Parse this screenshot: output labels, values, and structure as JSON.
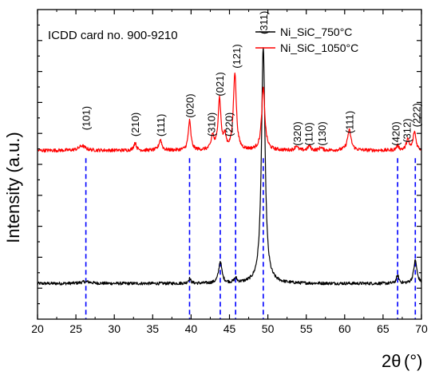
{
  "chart_data": {
    "type": "line",
    "xlabel_main": "2θ",
    "xlabel_unit": "(°)",
    "ylabel": "Intensity (a.u.)",
    "annotation": "ICDD card no. 900-9210",
    "xlim": [
      20,
      70
    ],
    "xticks": [
      20,
      25,
      30,
      35,
      40,
      45,
      50,
      55,
      60,
      65,
      70
    ],
    "ylim": [
      0,
      100
    ],
    "legend_position": "top-right",
    "series": [
      {
        "name": "Ni_SiC_750°C",
        "color": "#000000",
        "baseline": 11.5,
        "noise": 0.5,
        "peaks": [
          {
            "x": 26.3,
            "h": 0.6,
            "w": 0.8
          },
          {
            "x": 39.8,
            "h": 1.5,
            "w": 0.2
          },
          {
            "x": 43.8,
            "h": 7.0,
            "w": 0.25
          },
          {
            "x": 45.8,
            "h": 1.5,
            "w": 0.2
          },
          {
            "x": 49.4,
            "h": 76.5,
            "w": 0.28
          },
          {
            "x": 66.9,
            "h": 2.5,
            "w": 0.2
          },
          {
            "x": 69.2,
            "h": 7.5,
            "w": 0.25
          }
        ]
      },
      {
        "name": "Ni_SiC_1050°C",
        "color": "#ff0000",
        "baseline": 54.5,
        "noise": 0.55,
        "peaks": [
          {
            "x": 25.8,
            "h": 1.5,
            "w": 0.5
          },
          {
            "x": 32.7,
            "h": 2.5,
            "w": 0.2
          },
          {
            "x": 36.0,
            "h": 3.5,
            "w": 0.22
          },
          {
            "x": 39.8,
            "h": 9.5,
            "w": 0.2
          },
          {
            "x": 42.8,
            "h": 4.5,
            "w": 0.2
          },
          {
            "x": 43.7,
            "h": 16.5,
            "w": 0.22
          },
          {
            "x": 44.4,
            "h": 4.0,
            "w": 0.2
          },
          {
            "x": 45.7,
            "h": 25.0,
            "w": 0.23
          },
          {
            "x": 49.4,
            "h": 20.0,
            "w": 0.25
          },
          {
            "x": 53.7,
            "h": 1.5,
            "w": 0.2
          },
          {
            "x": 55.4,
            "h": 1.5,
            "w": 0.2
          },
          {
            "x": 56.9,
            "h": 1.0,
            "w": 0.2
          },
          {
            "x": 60.6,
            "h": 6.5,
            "w": 0.28
          },
          {
            "x": 66.9,
            "h": 1.5,
            "w": 0.2
          },
          {
            "x": 68.2,
            "h": 3.5,
            "w": 0.2
          },
          {
            "x": 69.1,
            "h": 6.0,
            "w": 0.22
          }
        ]
      }
    ],
    "reference_lines_x": [
      26.3,
      39.8,
      43.8,
      45.8,
      49.4,
      66.9,
      69.2
    ],
    "reference_line_color": "#0000ff",
    "peak_labels": [
      {
        "text": "(101)",
        "x": 26.3,
        "y": 61
      },
      {
        "text": "(210)",
        "x": 32.7,
        "y": 59
      },
      {
        "text": "(111)",
        "x": 36.0,
        "y": 59
      },
      {
        "text": "(020)",
        "x": 39.8,
        "y": 65
      },
      {
        "text": "(310)",
        "x": 42.6,
        "y": 59
      },
      {
        "text": "(021)",
        "x": 43.7,
        "y": 72
      },
      {
        "text": "(220)",
        "x": 44.9,
        "y": 59
      },
      {
        "text": "(121)",
        "x": 45.9,
        "y": 81
      },
      {
        "text": "(311)",
        "x": 49.4,
        "y": 92
      },
      {
        "text": "(320)",
        "x": 53.8,
        "y": 56
      },
      {
        "text": "(110)",
        "x": 55.3,
        "y": 56
      },
      {
        "text": "(130)",
        "x": 57.0,
        "y": 56
      },
      {
        "text": "(111)",
        "x": 60.6,
        "y": 60
      },
      {
        "text": "(420)",
        "x": 66.6,
        "y": 56
      },
      {
        "text": "(312)",
        "x": 68.1,
        "y": 57
      },
      {
        "text": "(222)",
        "x": 69.3,
        "y": 62
      }
    ]
  }
}
